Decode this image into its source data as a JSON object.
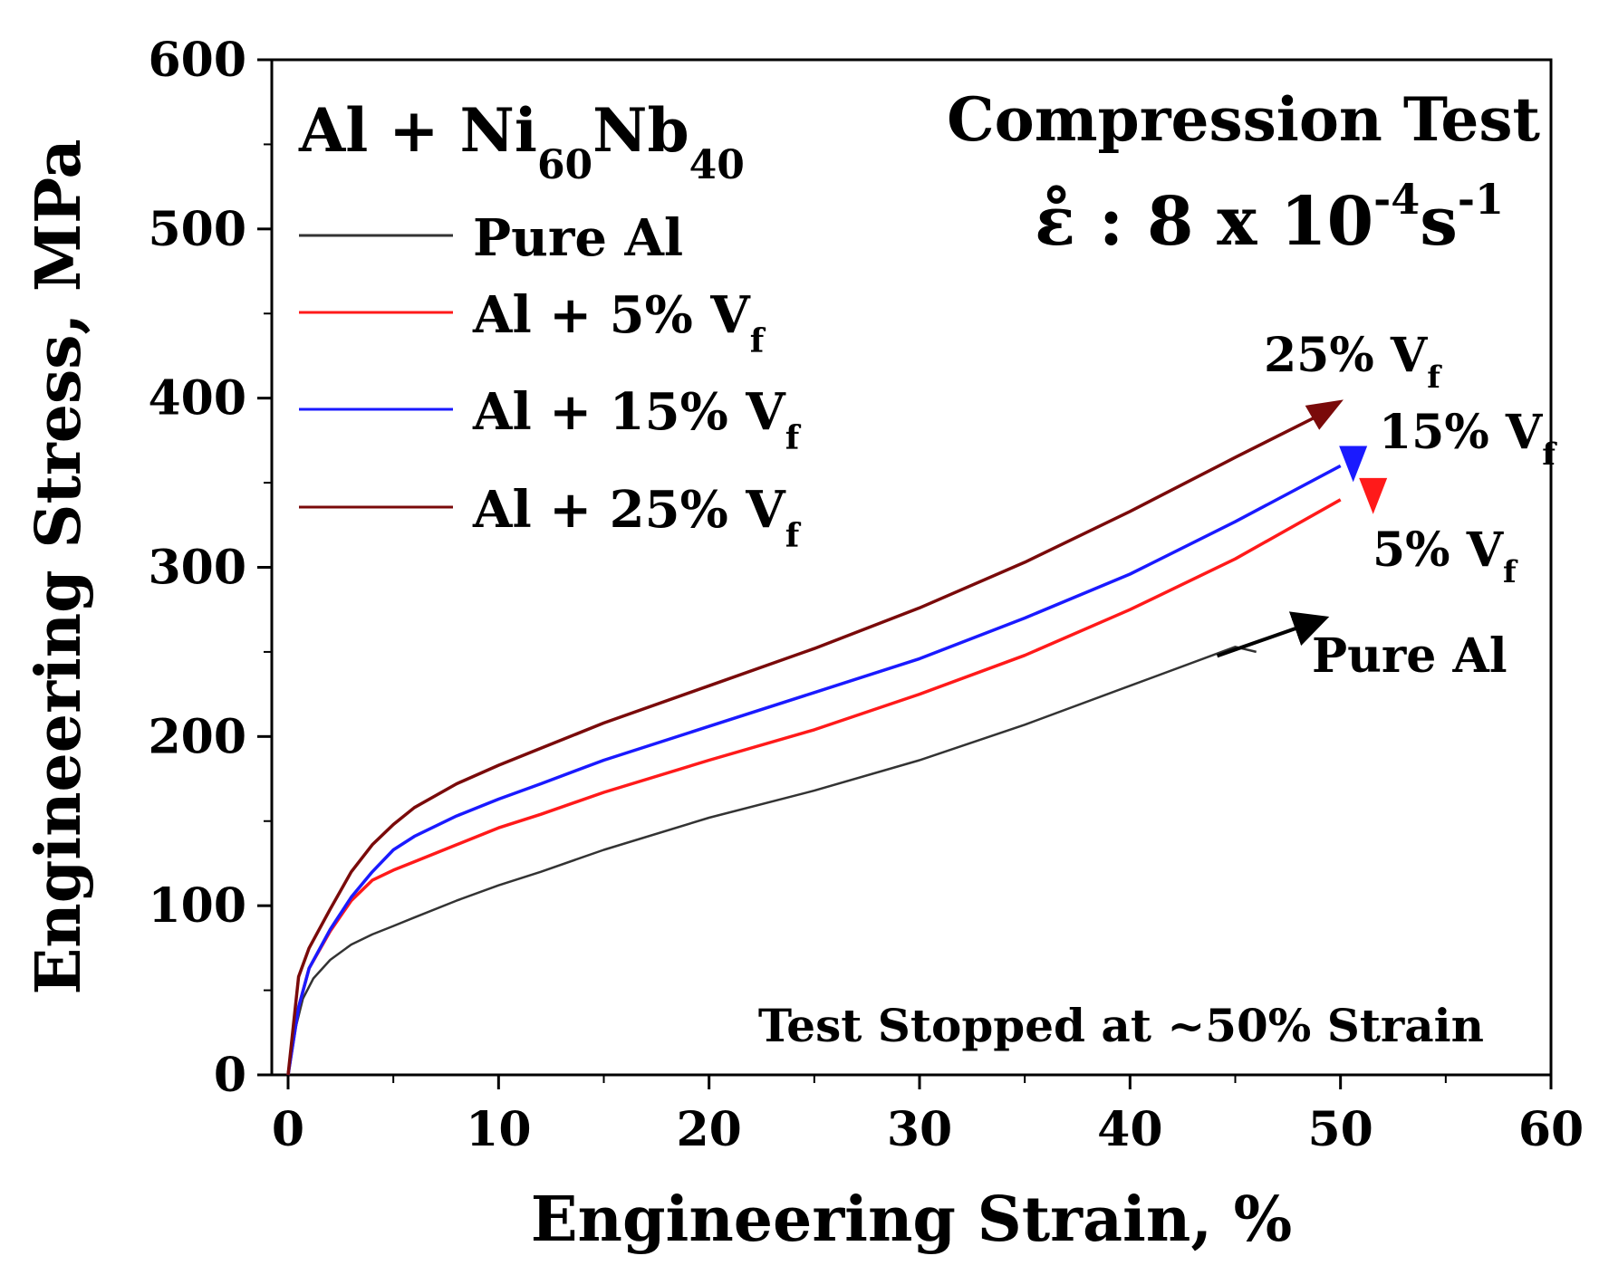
{
  "chart_data": {
    "type": "line",
    "title": "",
    "xlabel": "Engineering Strain, %",
    "ylabel": "Engineering Stress, MPa",
    "xlim": [
      0,
      60
    ],
    "ylim": [
      0,
      600
    ],
    "xticks": [
      "0",
      "10",
      "20",
      "30",
      "40",
      "50",
      "60"
    ],
    "yticks": [
      "0",
      "100",
      "200",
      "300",
      "400",
      "500",
      "600"
    ],
    "grid": false,
    "legend_title": {
      "base": "Al + Ni",
      "sub1": "60",
      "mid": "Nb",
      "sub2": "40"
    },
    "legend_position": "top-left",
    "annotations": {
      "test_type": "Compression Test",
      "rate_symbol": "ε̊",
      "rate_text": " : 8 x 10",
      "rate_exp1": "-4",
      "rate_unit": "s",
      "rate_exp2": "-1",
      "stopped_note": "Test Stopped at ~50% Strain"
    },
    "series": [
      {
        "name": "Pure Al",
        "legend_base": "Pure Al",
        "legend_sub": "",
        "color": "#333333",
        "end_label_base": "Pure Al",
        "end_label_sub": "",
        "x": [
          0,
          0.3,
          0.7,
          1.2,
          2,
          3,
          4,
          5,
          6,
          8,
          10,
          12,
          15,
          20,
          25,
          30,
          35,
          40,
          45,
          46
        ],
        "y": [
          0,
          25,
          45,
          57,
          68,
          77,
          83,
          88,
          93,
          103,
          112,
          120,
          133,
          152,
          168,
          186,
          207,
          230,
          253,
          250
        ]
      },
      {
        "name": "Al + 5% Vf",
        "legend_base": "Al + 5% V",
        "legend_sub": "f",
        "color": "#ff1a1a",
        "end_label_base": "5% V",
        "end_label_sub": "f",
        "x": [
          0,
          0.5,
          1,
          2,
          3,
          4,
          5,
          6,
          8,
          10,
          12,
          15,
          20,
          25,
          30,
          35,
          40,
          45,
          50
        ],
        "y": [
          0,
          40,
          63,
          85,
          103,
          115,
          121,
          126,
          136,
          146,
          154,
          167,
          186,
          204,
          225,
          248,
          275,
          305,
          340
        ]
      },
      {
        "name": "Al + 15% Vf",
        "legend_base": "Al + 15% V",
        "legend_sub": "f",
        "color": "#1a1aff",
        "end_label_base": "15% V",
        "end_label_sub": "f",
        "x": [
          0,
          0.5,
          1,
          2,
          3,
          4,
          5,
          6,
          8,
          10,
          12,
          15,
          20,
          25,
          30,
          35,
          40,
          45,
          50
        ],
        "y": [
          0,
          40,
          63,
          86,
          105,
          120,
          133,
          141,
          153,
          163,
          172,
          186,
          206,
          226,
          246,
          270,
          296,
          327,
          360
        ]
      },
      {
        "name": "Al + 25% Vf",
        "legend_base": "Al + 25% V",
        "legend_sub": "f",
        "color": "#7a0a0a",
        "end_label_base": "25% V",
        "end_label_sub": "f",
        "x": [
          0,
          0.5,
          1,
          2,
          3,
          4,
          5,
          6,
          8,
          10,
          12,
          15,
          20,
          25,
          30,
          35,
          40,
          45,
          49
        ],
        "y": [
          0,
          58,
          75,
          98,
          120,
          136,
          148,
          158,
          172,
          183,
          193,
          208,
          230,
          252,
          276,
          303,
          333,
          365,
          390
        ]
      }
    ]
  }
}
